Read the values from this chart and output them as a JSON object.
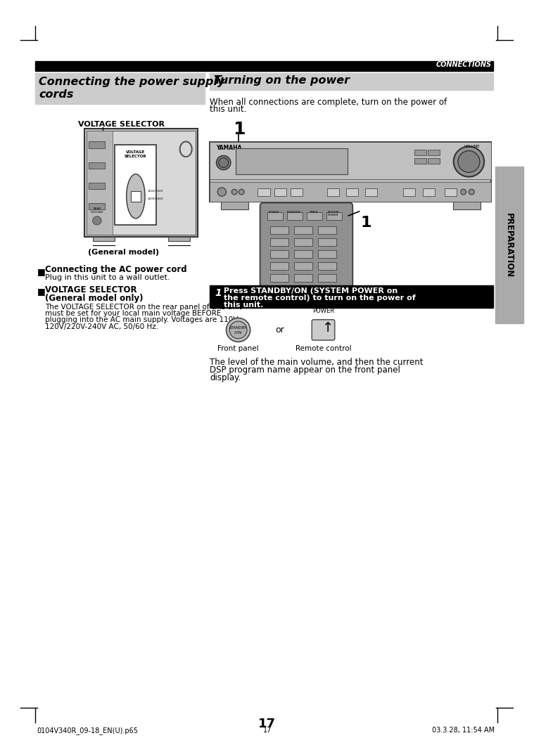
{
  "bg_color": "#ffffff",
  "header_bar_color": "#000000",
  "header_text": "CONNECTIONS",
  "header_text_color": "#ffffff",
  "section1_title_line1": "Connecting the power supply",
  "section1_title_line2": "cords",
  "section1_bg": "#cccccc",
  "section2_title": "Turning on the power",
  "section2_bg": "#cccccc",
  "voltage_selector_label": "VOLTAGE SELECTOR",
  "general_model_label": "(General model)",
  "intro_text_line1": "When all connections are complete, turn on the power of",
  "intro_text_line2": "this unit.",
  "connecting_ac_header": "Connecting the AC power cord",
  "connecting_ac_text": "Plug in this unit to a wall outlet.",
  "vs_header1": "VOLTAGE SELECTOR",
  "vs_header2": "(General model only)",
  "vs_text1": "The VOLTAGE SELECTOR on the rear panel of this unit",
  "vs_text2": "must be set for your local main voltage BEFORE",
  "vs_text3": "plugging into the AC main supply. Voltages are 110V-",
  "vs_text4": "120V/220V-240V AC, 50/60 Hz.",
  "step1_bold": "Press STANDBY/ON (SYSTEM POWER on",
  "step1_bold2": "the remote control) to turn on the power of",
  "step1_bold3": "this unit.",
  "front_panel_label": "Front panel",
  "remote_control_label": "Remote control",
  "or_label": "or",
  "system_power_label": "SYSTEM\nPOWER",
  "standby_on_label": "STANDBY/\nON",
  "volume_text1": "The level of the main volume, and then the current",
  "volume_text2": "DSP program name appear on the front panel",
  "volume_text3": "display.",
  "preparation_label": "PREPARATION",
  "page_number": "17",
  "footer_left": "0104V340R_09-18_EN(U).p65",
  "footer_mid": "17",
  "footer_right": "03.3.28, 11:54 AM",
  "device_color": "#c8c8c8",
  "device_inner_color": "#d8d8d8",
  "vs_box_color": "#ffffff",
  "knob_color": "#b0b0b0",
  "remote_color": "#909090",
  "receiver_color": "#bbbbbb"
}
